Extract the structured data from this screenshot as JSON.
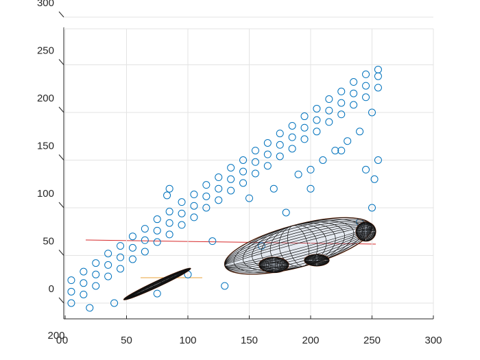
{
  "chart_data": {
    "type": "scatter",
    "x": [
      5,
      5,
      5,
      15,
      15,
      15,
      25,
      25,
      25,
      35,
      35,
      35,
      45,
      45,
      45,
      55,
      55,
      55,
      65,
      65,
      65,
      75,
      75,
      75,
      85,
      85,
      85,
      95,
      95,
      95,
      105,
      105,
      105,
      115,
      115,
      115,
      125,
      125,
      125,
      135,
      135,
      135,
      145,
      145,
      145,
      155,
      155,
      155,
      165,
      165,
      165,
      175,
      175,
      175,
      185,
      185,
      185,
      195,
      195,
      195,
      205,
      205,
      205,
      215,
      215,
      215,
      225,
      225,
      225,
      235,
      235,
      235,
      245,
      245,
      245,
      255,
      255,
      255,
      150,
      170,
      190,
      210,
      230,
      250,
      200,
      220,
      240,
      250,
      252,
      240,
      160,
      130,
      75,
      40,
      20,
      100,
      120,
      85,
      83,
      225,
      200,
      180,
      255,
      245
    ],
    "values": [
      0,
      12,
      24,
      9,
      21,
      33,
      18,
      30,
      42,
      28,
      40,
      52,
      36,
      48,
      60,
      46,
      58,
      70,
      54,
      66,
      78,
      64,
      76,
      88,
      72,
      84,
      96,
      82,
      94,
      106,
      90,
      102,
      114,
      100,
      112,
      124,
      108,
      120,
      132,
      118,
      130,
      142,
      126,
      138,
      150,
      136,
      148,
      160,
      144,
      156,
      168,
      154,
      166,
      178,
      162,
      174,
      186,
      172,
      184,
      196,
      180,
      192,
      204,
      190,
      202,
      214,
      198,
      210,
      222,
      208,
      220,
      232,
      216,
      228,
      240,
      226,
      238,
      245,
      110,
      120,
      135,
      150,
      170,
      200,
      140,
      160,
      180,
      100,
      130,
      85,
      60,
      18,
      10,
      0,
      -5,
      30,
      65,
      120,
      113,
      160,
      120,
      95,
      150,
      140
    ],
    "color": "#0072bd",
    "xlim": [
      0,
      300
    ],
    "ylim": [
      0,
      300
    ],
    "xticks": [
      0,
      50,
      100,
      150,
      200,
      250,
      300
    ],
    "yticks": [
      0,
      50,
      100,
      150,
      200,
      250,
      300
    ],
    "zticks": [
      0,
      200
    ],
    "grid": true,
    "ellipses": [
      {
        "center": [
          190,
          60
        ],
        "radii": [
          62,
          22
        ],
        "angle": 15
      },
      {
        "center": [
          170,
          40
        ],
        "radii": [
          12,
          8
        ],
        "angle": 0
      },
      {
        "center": [
          205,
          45
        ],
        "radii": [
          10,
          6
        ],
        "angle": 0
      },
      {
        "center": [
          245,
          75
        ],
        "radii": [
          8,
          10
        ],
        "angle": 0
      },
      {
        "center": [
          75,
          20
        ],
        "radii": [
          30,
          3
        ],
        "angle": 25
      }
    ]
  }
}
